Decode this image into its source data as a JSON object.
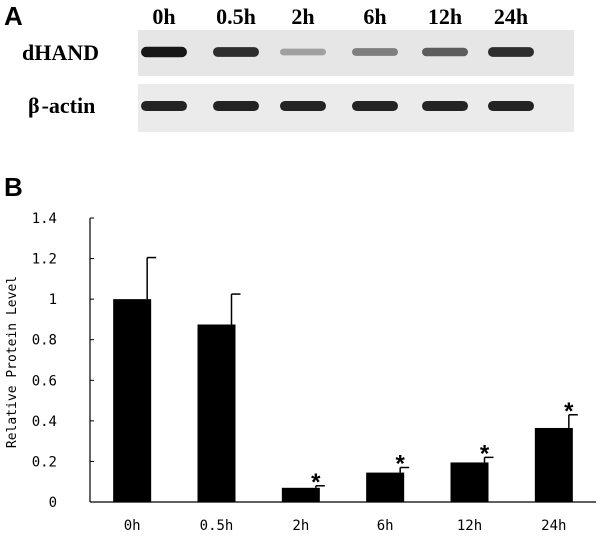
{
  "panel_a": {
    "letter": "A",
    "lanes": [
      "0h",
      "0.5h",
      "2h",
      "6h",
      "12h",
      "24h"
    ],
    "rows": [
      {
        "label": "dHAND",
        "band_intensity": [
          0.9,
          0.8,
          0.3,
          0.45,
          0.6,
          0.8
        ]
      },
      {
        "label_symbol": "β",
        "label": "-actin",
        "band_intensity": [
          0.85,
          0.85,
          0.85,
          0.85,
          0.85,
          0.85
        ]
      }
    ]
  },
  "panel_b": {
    "letter": "B"
  },
  "chart_data": {
    "type": "bar",
    "categories": [
      "0h",
      "0.5h",
      "2h",
      "6h",
      "12h",
      "24h"
    ],
    "values": [
      1.0,
      0.875,
      0.07,
      0.145,
      0.195,
      0.365
    ],
    "error": [
      0.205,
      0.15,
      0.01,
      0.025,
      0.025,
      0.065
    ],
    "significant": [
      false,
      false,
      true,
      true,
      true,
      true
    ],
    "significance_marker": "*",
    "ylabel": "Relative Protein Level",
    "xlabel": "",
    "ylim": [
      0,
      1.4
    ],
    "yticks": [
      0,
      0.2,
      0.4,
      0.6,
      0.8,
      1,
      1.2,
      1.4
    ],
    "ytick_labels": [
      "0",
      "0.2",
      "0.4",
      "0.6",
      "0.8",
      "1",
      "1.2",
      "1.4"
    ],
    "grid": false,
    "bar_color": "#000000"
  }
}
